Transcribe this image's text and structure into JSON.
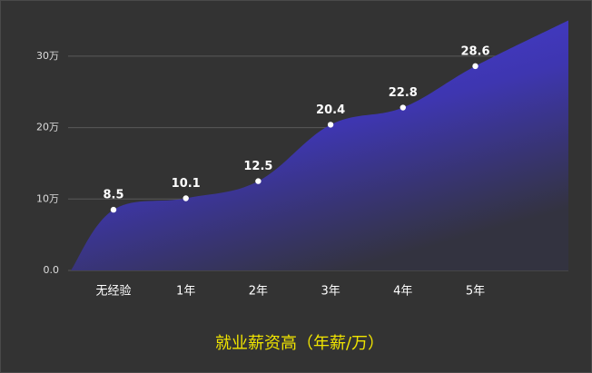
{
  "chart_data": {
    "type": "area",
    "title": "就业薪资高（年薪/万）",
    "categories": [
      null,
      "无经验",
      "1年",
      "2年",
      "3年",
      "4年",
      "5年",
      null
    ],
    "values": [
      0,
      8.5,
      10.1,
      12.5,
      20.4,
      22.8,
      28.6,
      35
    ],
    "color": "#4a3fe6",
    "ylim": [
      0,
      35
    ],
    "yticks": [
      {
        "value": 0,
        "label": "0.0"
      },
      {
        "value": 10,
        "label": "10万"
      },
      {
        "value": 20,
        "label": "20万"
      },
      {
        "value": 30,
        "label": "30万"
      }
    ],
    "grid": true
  }
}
